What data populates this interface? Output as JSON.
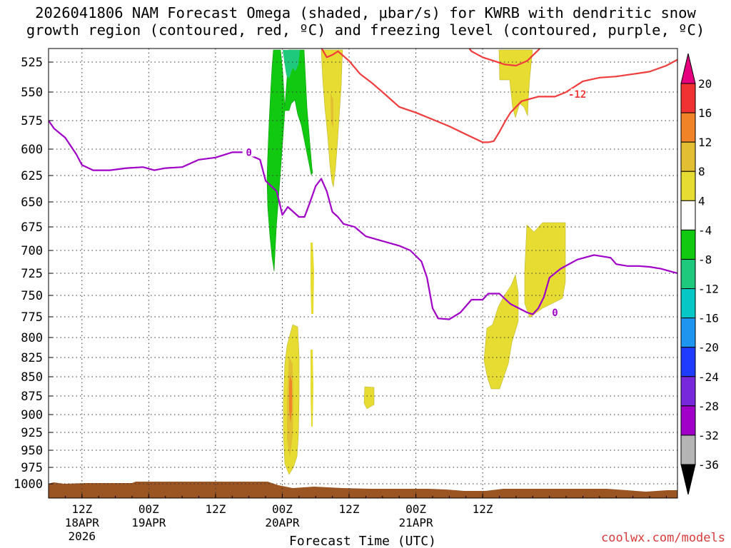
{
  "chart_data": {
    "type": "contour",
    "title_line1": "2026041806 NAM Forecast Omega (shaded, μbar/s) for KWRB with dendritic snow",
    "title_line2": "growth region (contoured, red, ºC) and freezing level (contoured, purple, ºC)",
    "xlabel": "Forecast Time (UTC)",
    "ylabel": "",
    "y_axis": {
      "unit": "hPa",
      "ticks": [
        525,
        550,
        575,
        600,
        625,
        650,
        675,
        700,
        725,
        750,
        775,
        800,
        825,
        850,
        875,
        900,
        925,
        950,
        975,
        1000
      ]
    },
    "x_axis": {
      "ticks": [
        {
          "hours": 6,
          "lines": [
            "12Z",
            "18APR",
            "2026"
          ]
        },
        {
          "hours": 18,
          "lines": [
            "00Z",
            "19APR"
          ]
        },
        {
          "hours": 30,
          "lines": [
            "12Z"
          ]
        },
        {
          "hours": 42,
          "lines": [
            "00Z",
            "20APR"
          ]
        },
        {
          "hours": 54,
          "lines": [
            "12Z"
          ]
        },
        {
          "hours": 66,
          "lines": [
            "00Z",
            "21APR"
          ]
        },
        {
          "hours": 78,
          "lines": [
            "12Z"
          ]
        }
      ]
    },
    "grid": true,
    "colorbar": {
      "position": "right",
      "levels": [
        20,
        16,
        12,
        8,
        4,
        -4,
        -8,
        -12,
        -16,
        -20,
        -24,
        -28,
        -32,
        -36
      ],
      "colors": [
        "#f03232",
        "#f08228",
        "#e1be32",
        "#e6dc32",
        "#ffffff",
        "#11c911",
        "#1ec87d",
        "#06c6c6",
        "#1e96f0",
        "#1e3cff",
        "#7828dc",
        "#a000c8",
        "#b4b4b4"
      ],
      "top_arrow_color": "#e6007e",
      "bottom_arrow_color": "#000000"
    },
    "omega_fill_colors": {
      "green": "#11c911",
      "teal": "#1ec87d",
      "yellow": "#e6dc32",
      "gold": "#e1be32",
      "orange": "#f08228",
      "terrain": "#9b5523"
    },
    "freezing_level_0C": {
      "color": "#a000c8",
      "label": "0",
      "points": [
        [
          0,
          575
        ],
        [
          1,
          582
        ],
        [
          3,
          590
        ],
        [
          5,
          605
        ],
        [
          6,
          615
        ],
        [
          8,
          620
        ],
        [
          11,
          620
        ],
        [
          14,
          618
        ],
        [
          17,
          617
        ],
        [
          19,
          620
        ],
        [
          21,
          618
        ],
        [
          24,
          617
        ],
        [
          27,
          610
        ],
        [
          30,
          608
        ],
        [
          33,
          603
        ],
        [
          35,
          603
        ],
        [
          38,
          610
        ],
        [
          39,
          630
        ],
        [
          40,
          635
        ],
        [
          41,
          640
        ],
        [
          42,
          663
        ],
        [
          43,
          655
        ],
        [
          44,
          660
        ],
        [
          45,
          665
        ],
        [
          46,
          665
        ],
        [
          47,
          650
        ],
        [
          48,
          635
        ],
        [
          49,
          628
        ],
        [
          50,
          640
        ],
        [
          51,
          660
        ],
        [
          52,
          665
        ],
        [
          53,
          672
        ],
        [
          55,
          675
        ],
        [
          57,
          685
        ],
        [
          60,
          690
        ],
        [
          63,
          695
        ],
        [
          65,
          700
        ],
        [
          67,
          712
        ],
        [
          68,
          730
        ],
        [
          69,
          765
        ],
        [
          70,
          777
        ],
        [
          72,
          778
        ],
        [
          74,
          770
        ],
        [
          76,
          755
        ],
        [
          78,
          755
        ],
        [
          79,
          748
        ],
        [
          81,
          748
        ],
        [
          83,
          760
        ],
        [
          86,
          770
        ],
        [
          87,
          772
        ],
        [
          88,
          765
        ],
        [
          89,
          752
        ],
        [
          90,
          730
        ],
        [
          92,
          720
        ],
        [
          95,
          710
        ],
        [
          98,
          705
        ],
        [
          101,
          708
        ],
        [
          102,
          715
        ],
        [
          104,
          717
        ],
        [
          106,
          717
        ],
        [
          108,
          718
        ],
        [
          110,
          720
        ],
        [
          113,
          725
        ]
      ]
    },
    "dgz_minus12C": {
      "color": "#f03c3c",
      "label": "-12",
      "points": [
        [
          49,
          513
        ],
        [
          50,
          521
        ],
        [
          51,
          519
        ],
        [
          52,
          516
        ],
        [
          53,
          520
        ],
        [
          54,
          524
        ],
        [
          56,
          535
        ],
        [
          58,
          542
        ],
        [
          60,
          550
        ],
        [
          63,
          563
        ],
        [
          66,
          568
        ],
        [
          69,
          574
        ],
        [
          72,
          580
        ],
        [
          75,
          587
        ],
        [
          78,
          594
        ],
        [
          79,
          594
        ],
        [
          80,
          593
        ],
        [
          81,
          585
        ],
        [
          82,
          576
        ],
        [
          83,
          568
        ],
        [
          85,
          558
        ],
        [
          88,
          554
        ],
        [
          91,
          554
        ],
        [
          93,
          550
        ],
        [
          96,
          541
        ],
        [
          99,
          538
        ],
        [
          102,
          537
        ],
        [
          105,
          535
        ],
        [
          108,
          533
        ],
        [
          111,
          528
        ],
        [
          113,
          523
        ]
      ]
    },
    "dgz_minus12C_top": {
      "color": "#f03c3c",
      "points": [
        [
          75,
          510
        ],
        [
          76,
          516
        ],
        [
          78,
          521
        ],
        [
          80,
          524
        ],
        [
          82,
          527
        ],
        [
          84,
          528
        ],
        [
          86,
          524
        ],
        [
          88,
          515
        ],
        [
          89,
          510
        ]
      ]
    },
    "credit": "coolwx.com/models"
  }
}
